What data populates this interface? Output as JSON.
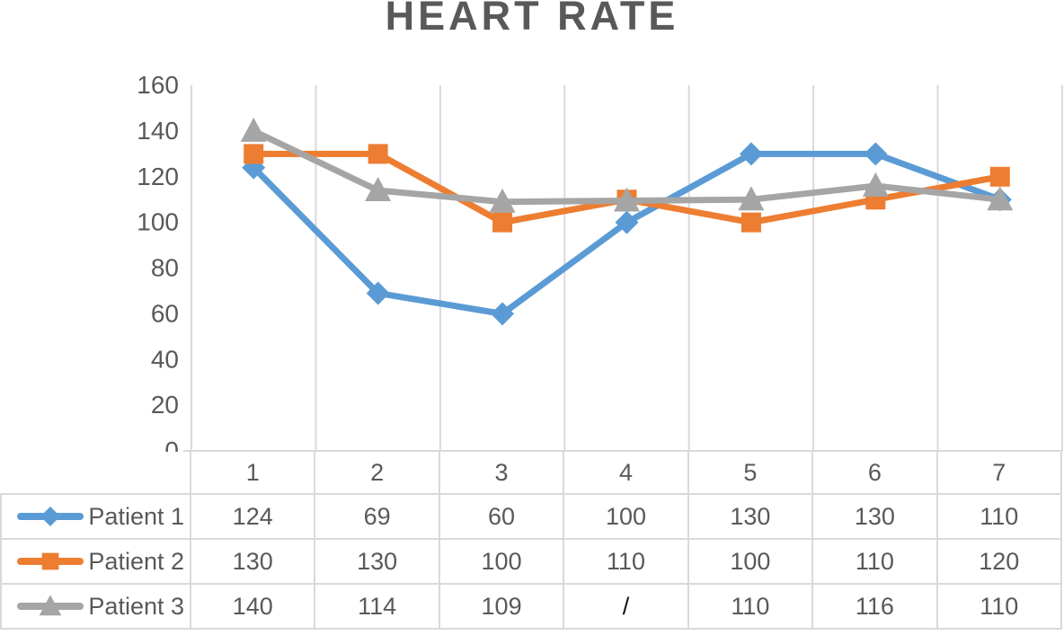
{
  "chart_data": {
    "type": "line",
    "title": "HEART RATE",
    "xlabel": "",
    "ylabel": "",
    "categories": [
      "1",
      "2",
      "3",
      "4",
      "5",
      "6",
      "7"
    ],
    "ylim": [
      0,
      160
    ],
    "y_tick_labels": [
      "0",
      "20",
      "40",
      "60",
      "80",
      "100",
      "120",
      "140",
      "160"
    ],
    "grid": "vertical-only",
    "legend_position": "table-left",
    "series": [
      {
        "name": "Patient 1",
        "color": "#5B9BD5",
        "marker": "diamond",
        "values": [
          124,
          69,
          60,
          100,
          130,
          130,
          110
        ],
        "table_values": [
          "124",
          "69",
          "60",
          "100",
          "130",
          "130",
          "110"
        ]
      },
      {
        "name": "Patient 2",
        "color": "#ED7D31",
        "marker": "square",
        "values": [
          130,
          130,
          100,
          110,
          100,
          110,
          120
        ],
        "table_values": [
          "130",
          "130",
          "100",
          "110",
          "100",
          "110",
          "120"
        ]
      },
      {
        "name": "Patient 3",
        "color": "#A5A5A5",
        "marker": "triangle",
        "values": [
          140,
          114,
          109,
          109.5,
          110,
          116,
          110
        ],
        "table_values": [
          "140",
          "114",
          "109",
          "/",
          "110",
          "116",
          "110"
        ]
      }
    ],
    "missing_value_symbol": "/",
    "colors": {
      "title_text": "#595959",
      "axis_text": "#595959",
      "gridline": "#D9D9D9",
      "table_border": "#D9D9D9",
      "missing_value_text": "#111111"
    }
  }
}
